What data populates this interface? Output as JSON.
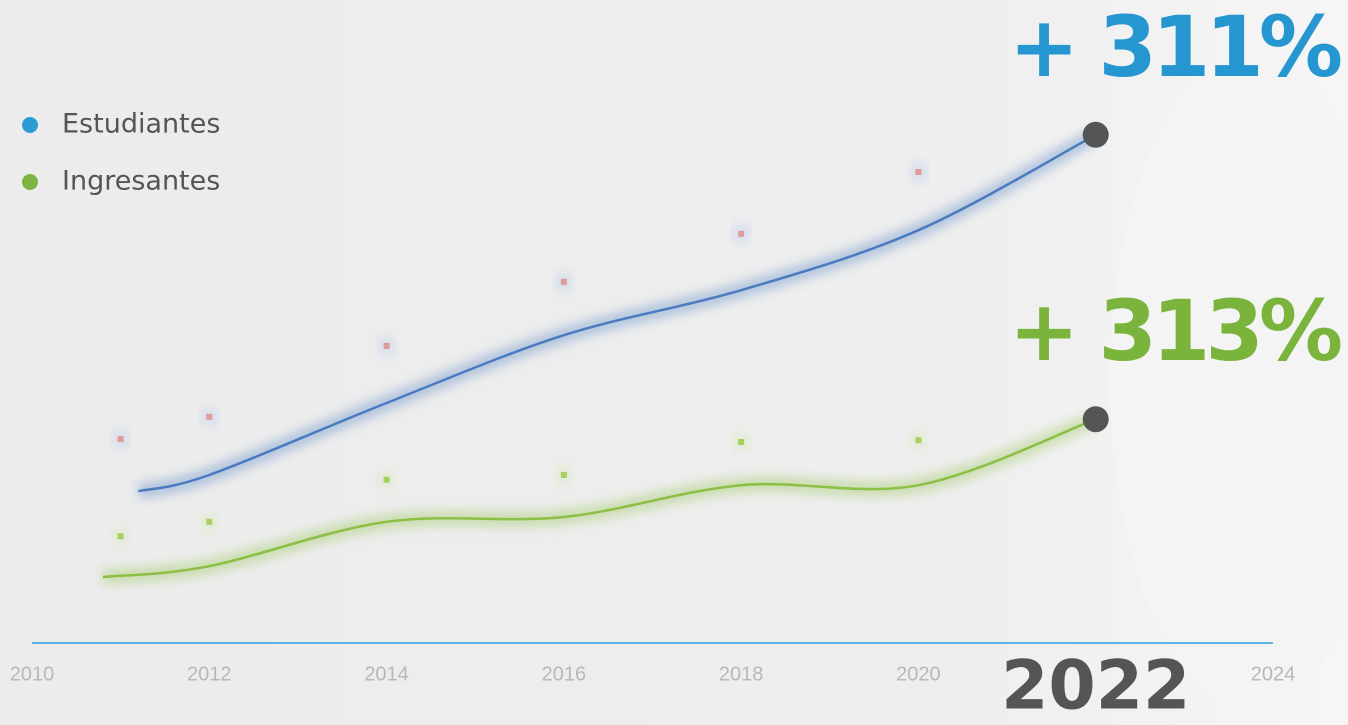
{
  "chart_data": {
    "type": "scatter-trend",
    "xlim": [
      2010,
      2024
    ],
    "ylim": [
      0,
      100
    ],
    "xticks": [
      2010,
      2012,
      2014,
      2016,
      2018,
      2020,
      2022,
      2024
    ],
    "highlight_x": 2022,
    "axis_color": "#29a0de",
    "series": [
      {
        "name": "Estudiantes",
        "color": "#4a7bc0",
        "legend_color": "#2a9bd3",
        "point_color": "#e09a9a",
        "x": [
          2011,
          2012,
          2014,
          2016,
          2018,
          2020
        ],
        "values": [
          34,
          37.7,
          49.5,
          60.2,
          68.2,
          78.5
        ],
        "trend_x": [
          2011.2,
          2012,
          2014,
          2016,
          2018,
          2020,
          2022
        ],
        "trend_values": [
          25.3,
          28,
          40,
          51.3,
          58.8,
          68.8,
          84.7
        ],
        "annotation": "+ 311%",
        "annotation_color": "#2596d0"
      },
      {
        "name": "Ingresantes",
        "color": "#8cbf45",
        "legend_color": "#7cb342",
        "point_color": "#a6d060",
        "x": [
          2011,
          2012,
          2014,
          2016,
          2018,
          2020
        ],
        "values": [
          17.8,
          20.2,
          27.2,
          28,
          33.5,
          33.8
        ],
        "trend_x": [
          2010.8,
          2012,
          2014,
          2016,
          2018,
          2020,
          2022
        ],
        "trend_values": [
          11,
          12.8,
          20.2,
          21,
          26.3,
          26.3,
          37.3
        ],
        "annotation": "+ 313%",
        "annotation_color": "#7ab43c"
      }
    ]
  }
}
